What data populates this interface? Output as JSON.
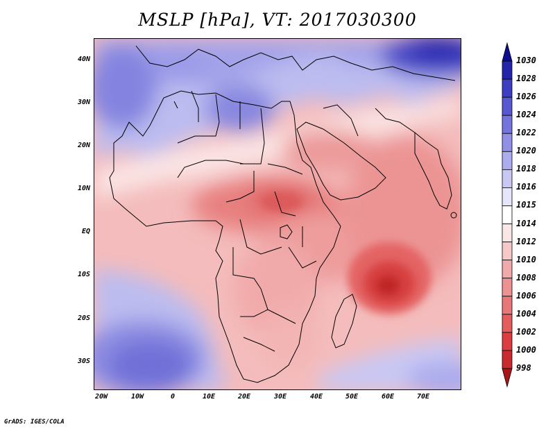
{
  "title": "MSLP [hPa], VT: 2017030300",
  "credit": "GrADS: IGES/COLA",
  "map": {
    "projection": "lat-lon",
    "lon_range": [
      -25,
      80
    ],
    "lat_range": [
      -37,
      45
    ],
    "lat_ticks": [
      {
        "lat": 40,
        "label": "40N"
      },
      {
        "lat": 30,
        "label": "30N"
      },
      {
        "lat": 20,
        "label": "20N"
      },
      {
        "lat": 10,
        "label": "10N"
      },
      {
        "lat": 0,
        "label": "EQ"
      },
      {
        "lat": -10,
        "label": "10S"
      },
      {
        "lat": -20,
        "label": "20S"
      },
      {
        "lat": -30,
        "label": "30S"
      }
    ],
    "lon_ticks": [
      {
        "lon": -20,
        "label": "20W"
      },
      {
        "lon": -10,
        "label": "10W"
      },
      {
        "lon": 0,
        "label": "0"
      },
      {
        "lon": 10,
        "label": "10E"
      },
      {
        "lon": 20,
        "label": "20E"
      },
      {
        "lon": 30,
        "label": "30E"
      },
      {
        "lon": 40,
        "label": "40E"
      },
      {
        "lon": 50,
        "label": "50E"
      },
      {
        "lon": 60,
        "label": "60E"
      },
      {
        "lon": 70,
        "label": "70E"
      }
    ]
  },
  "colorbar": {
    "levels": [
      998,
      1000,
      1002,
      1004,
      1006,
      1008,
      1010,
      1012,
      1014,
      1015,
      1016,
      1018,
      1020,
      1022,
      1024,
      1026,
      1028,
      1030
    ],
    "colors": [
      "#a8161c",
      "#c92a2f",
      "#dc3d40",
      "#e45c5c",
      "#e87878",
      "#ec9292",
      "#f1aaaa",
      "#f6c8c8",
      "#fbe6e6",
      "#ffffff",
      "#e6e6fb",
      "#c8c8f4",
      "#acacee",
      "#9090e6",
      "#7474dc",
      "#5858d0",
      "#3e3ec2",
      "#2424aa",
      "#0e0e8e"
    ]
  }
}
